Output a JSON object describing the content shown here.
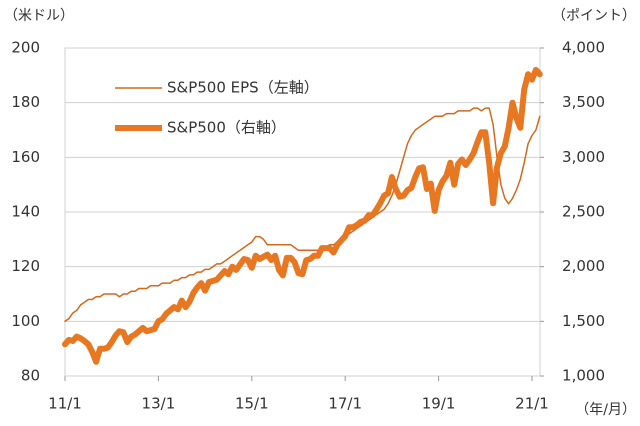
{
  "chart_data": {
    "type": "line",
    "y_unit": "（米ドル）",
    "y2_unit": "（ポイント）",
    "x_unit": "（年/月）",
    "categories": [
      "11/1",
      null,
      null,
      null,
      null,
      null,
      null,
      null,
      null,
      null,
      null,
      null,
      null,
      null,
      null,
      null,
      null,
      null,
      null,
      null,
      null,
      null,
      null,
      null,
      "13/1",
      null,
      null,
      null,
      null,
      null,
      null,
      null,
      null,
      null,
      null,
      null,
      null,
      null,
      null,
      null,
      null,
      null,
      null,
      null,
      null,
      null,
      null,
      null,
      "15/1",
      null,
      null,
      null,
      null,
      null,
      null,
      null,
      null,
      null,
      null,
      null,
      null,
      null,
      null,
      null,
      null,
      null,
      null,
      null,
      null,
      null,
      null,
      null,
      "17/1",
      null,
      null,
      null,
      null,
      null,
      null,
      null,
      null,
      null,
      null,
      null,
      null,
      null,
      null,
      null,
      null,
      null,
      null,
      null,
      null,
      null,
      null,
      null,
      "19/1",
      null,
      null,
      null,
      null,
      null,
      null,
      null,
      null,
      null,
      null,
      null,
      null,
      null,
      null,
      null,
      null,
      null,
      null,
      null,
      null,
      null,
      null,
      null,
      "21/1",
      null,
      null
    ],
    "series": [
      {
        "name": "S&P500 EPS（左軸）",
        "color": "#d2691e",
        "width": 1.5,
        "values": [
          100,
          101,
          103,
          104,
          106,
          107,
          108,
          108,
          109,
          109,
          110,
          110,
          110,
          110,
          109,
          110,
          110,
          111,
          111,
          112,
          112,
          112,
          113,
          113,
          113,
          114,
          114,
          114,
          115,
          115,
          116,
          116,
          117,
          117,
          118,
          118,
          119,
          119,
          120,
          121,
          121,
          122,
          123,
          124,
          125,
          126,
          127,
          128,
          129,
          131,
          131,
          130,
          128,
          128,
          128,
          128,
          128,
          128,
          128,
          127,
          126,
          126,
          126,
          126,
          126,
          126,
          127,
          127,
          128,
          128,
          129,
          130,
          131,
          132,
          133,
          134,
          135,
          136,
          137,
          138,
          139,
          140,
          141,
          143,
          146,
          150,
          155,
          160,
          165,
          168,
          170,
          171,
          172,
          173,
          174,
          175,
          175,
          175,
          176,
          176,
          176,
          177,
          177,
          177,
          177,
          178,
          178,
          177,
          178,
          178,
          172,
          160,
          150,
          145,
          143,
          145,
          148,
          152,
          158,
          165,
          168,
          170,
          175
        ]
      },
      {
        "name": "S&P500（右軸）",
        "color": "#e87722",
        "width": 6,
        "axis": "y2",
        "values": [
          1290,
          1330,
          1320,
          1360,
          1345,
          1320,
          1290,
          1220,
          1130,
          1250,
          1250,
          1260,
          1310,
          1370,
          1410,
          1400,
          1310,
          1360,
          1380,
          1410,
          1440,
          1410,
          1420,
          1430,
          1500,
          1520,
          1570,
          1600,
          1630,
          1610,
          1690,
          1630,
          1680,
          1760,
          1810,
          1850,
          1780,
          1860,
          1870,
          1880,
          1920,
          1960,
          1930,
          2000,
          1970,
          2020,
          2070,
          2060,
          1990,
          2100,
          2070,
          2090,
          2110,
          2060,
          2100,
          1970,
          1920,
          2080,
          2080,
          2040,
          1940,
          1930,
          2060,
          2070,
          2100,
          2100,
          2170,
          2170,
          2170,
          2130,
          2200,
          2240,
          2280,
          2360,
          2360,
          2380,
          2410,
          2420,
          2470,
          2470,
          2520,
          2580,
          2650,
          2670,
          2820,
          2710,
          2640,
          2650,
          2700,
          2720,
          2820,
          2900,
          2910,
          2710,
          2760,
          2510,
          2700,
          2780,
          2830,
          2950,
          2750,
          2940,
          2980,
          2930,
          2980,
          3040,
          3140,
          3230,
          3230,
          2950,
          2580,
          2910,
          3040,
          3100,
          3270,
          3500,
          3360,
          3270,
          3620,
          3760,
          3710,
          3800,
          3760
        ]
      }
    ],
    "ylim": [
      80,
      200
    ],
    "yticks": [
      80,
      100,
      120,
      140,
      160,
      180,
      200
    ],
    "y2lim": [
      1000,
      4000
    ],
    "y2ticks": [
      {
        "value": 1000,
        "label": "1,000"
      },
      {
        "value": 1500,
        "label": "1,500"
      },
      {
        "value": 2000,
        "label": "2,000"
      },
      {
        "value": 2500,
        "label": "2,500"
      },
      {
        "value": 3000,
        "label": "3,000"
      },
      {
        "value": 3500,
        "label": "3,500"
      },
      {
        "value": 4000,
        "label": "4,000"
      }
    ],
    "grid": true
  }
}
